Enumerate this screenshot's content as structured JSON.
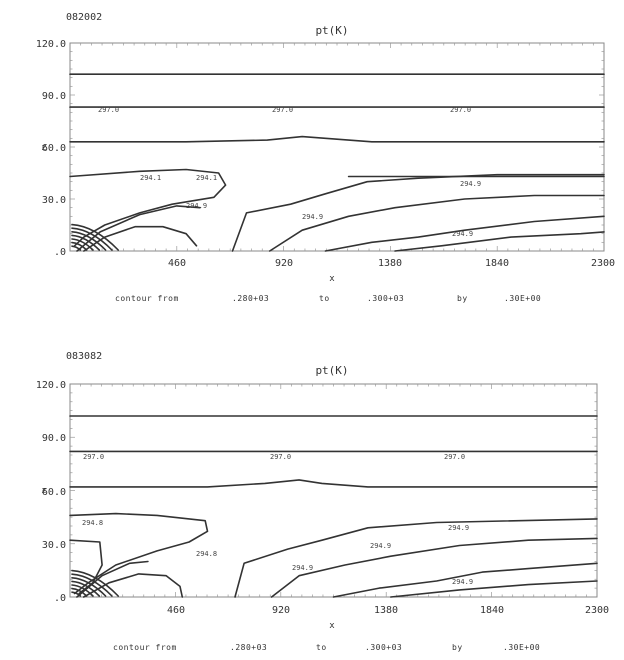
{
  "chart_data": [
    {
      "type": "contour",
      "run_id": "082002",
      "title": "pt(K)",
      "xlabel": "x",
      "ylabel": "z",
      "xlim": [
        0,
        2300
      ],
      "ylim": [
        0,
        120
      ],
      "x_ticks": [
        "460",
        "920",
        "1380",
        "1840",
        "2300"
      ],
      "y_ticks": [
        ".0",
        "30.0",
        "60.0",
        "90.0",
        "120.0"
      ],
      "contour_labels": [
        "297.0",
        "297.0",
        "297.0",
        "294.1",
        "294.1",
        "294.9",
        "294.9",
        "294.9",
        "294.9"
      ],
      "footer": {
        "from_label": "contour from",
        "from_value": ".280+03",
        "to_label": "to",
        "to_value": ".300+03",
        "by_label": "by",
        "by_value": ".30E+00"
      },
      "contours": [
        {
          "points": [
            [
              0,
              102
            ],
            [
              2300,
              102
            ]
          ]
        },
        {
          "points": [
            [
              0,
              83
            ],
            [
              2300,
              83
            ]
          ]
        },
        {
          "points": [
            [
              0,
              63
            ],
            [
              500,
              63
            ],
            [
              850,
              64
            ],
            [
              1000,
              66
            ],
            [
              1100,
              65
            ],
            [
              1300,
              63
            ],
            [
              2300,
              63
            ]
          ]
        },
        {
          "points": [
            [
              0,
              43
            ],
            [
              2300,
              43
            ]
          ],
          "right_only": true,
          "x_from": 1200
        },
        {
          "points": [
            [
              0,
              43
            ],
            [
              300,
              46
            ],
            [
              500,
              47
            ],
            [
              640,
              45
            ],
            [
              670,
              38
            ],
            [
              620,
              31
            ],
            [
              440,
              27
            ],
            [
              300,
              22
            ],
            [
              150,
              15
            ],
            [
              60,
              8
            ],
            [
              20,
              3
            ]
          ]
        },
        {
          "points": [
            [
              30,
              0
            ],
            [
              130,
              11
            ],
            [
              300,
              21
            ],
            [
              460,
              26
            ],
            [
              560,
              25
            ]
          ]
        },
        {
          "points": [
            [
              60,
              0
            ],
            [
              150,
              8
            ],
            [
              280,
              14
            ],
            [
              400,
              14
            ],
            [
              500,
              10
            ],
            [
              545,
              3
            ]
          ]
        },
        {
          "points": [
            [
              700,
              0
            ],
            [
              760,
              22
            ],
            [
              950,
              27
            ],
            [
              1100,
              33
            ],
            [
              1280,
              40
            ],
            [
              1500,
              42
            ],
            [
              1840,
              44
            ],
            [
              2300,
              44
            ]
          ]
        },
        {
          "points": [
            [
              860,
              0
            ],
            [
              1000,
              12
            ],
            [
              1200,
              20
            ],
            [
              1400,
              25
            ],
            [
              1700,
              30
            ],
            [
              2000,
              32
            ],
            [
              2300,
              32
            ]
          ]
        },
        {
          "points": [
            [
              1100,
              0
            ],
            [
              1300,
              5
            ],
            [
              1500,
              8
            ],
            [
              1700,
              12
            ],
            [
              2000,
              17
            ],
            [
              2300,
              20
            ]
          ]
        },
        {
          "points": [
            [
              1400,
              0
            ],
            [
              1600,
              3
            ],
            [
              1900,
              8
            ],
            [
              2200,
              10
            ],
            [
              2300,
              11
            ]
          ]
        }
      ]
    },
    {
      "type": "contour",
      "run_id": "083082",
      "title": "pt(K)",
      "xlabel": "x",
      "ylabel": "z",
      "xlim": [
        0,
        2300
      ],
      "ylim": [
        0,
        120
      ],
      "x_ticks": [
        "460",
        "920",
        "1380",
        "1840",
        "2300"
      ],
      "y_ticks": [
        ".0",
        "30.0",
        "60.0",
        "90.0",
        "120.0"
      ],
      "contour_labels": [
        "297.0",
        "297.0",
        "297.0",
        "294.8",
        "294.8",
        "294.9",
        "294.9",
        "294.9",
        "294.9"
      ],
      "footer": {
        "from_label": "contour from",
        "from_value": ".280+03",
        "to_label": "to",
        "to_value": ".300+03",
        "by_label": "by",
        "by_value": ".30E+00"
      },
      "contours": [
        {
          "points": [
            [
              0,
              102
            ],
            [
              2300,
              102
            ]
          ]
        },
        {
          "points": [
            [
              0,
              82
            ],
            [
              2300,
              82
            ]
          ]
        },
        {
          "points": [
            [
              0,
              62
            ],
            [
              600,
              62
            ],
            [
              850,
              64
            ],
            [
              1000,
              66
            ],
            [
              1100,
              64
            ],
            [
              1300,
              62
            ],
            [
              2300,
              62
            ]
          ]
        },
        {
          "points": [
            [
              0,
              46
            ],
            [
              200,
              47
            ],
            [
              380,
              46
            ],
            [
              590,
              43
            ],
            [
              600,
              37
            ],
            [
              520,
              31
            ],
            [
              380,
              26
            ],
            [
              200,
              18
            ],
            [
              80,
              8
            ],
            [
              20,
              2
            ]
          ]
        },
        {
          "points": [
            [
              0,
              32
            ],
            [
              130,
              31
            ],
            [
              140,
              18
            ],
            [
              100,
              8
            ],
            [
              40,
              2
            ]
          ]
        },
        {
          "points": [
            [
              30,
              0
            ],
            [
              140,
              12
            ],
            [
              260,
              19
            ],
            [
              340,
              20
            ]
          ]
        },
        {
          "points": [
            [
              60,
              0
            ],
            [
              170,
              8
            ],
            [
              300,
              13
            ],
            [
              420,
              12
            ],
            [
              480,
              6
            ],
            [
              490,
              0
            ]
          ]
        },
        {
          "points": [
            [
              720,
              0
            ],
            [
              760,
              19
            ],
            [
              950,
              27
            ],
            [
              1100,
              32
            ],
            [
              1300,
              39
            ],
            [
              1600,
              42
            ],
            [
              2300,
              44
            ]
          ]
        },
        {
          "points": [
            [
              880,
              0
            ],
            [
              1000,
              12
            ],
            [
              1200,
              18
            ],
            [
              1400,
              23
            ],
            [
              1700,
              29
            ],
            [
              2000,
              32
            ],
            [
              2300,
              33
            ]
          ]
        },
        {
          "points": [
            [
              1150,
              0
            ],
            [
              1350,
              5
            ],
            [
              1600,
              9
            ],
            [
              1800,
              14
            ],
            [
              2000,
              16
            ],
            [
              2300,
              19
            ]
          ]
        },
        {
          "points": [
            [
              1400,
              0
            ],
            [
              1700,
              4
            ],
            [
              2000,
              7
            ],
            [
              2300,
              9
            ]
          ]
        }
      ]
    }
  ]
}
